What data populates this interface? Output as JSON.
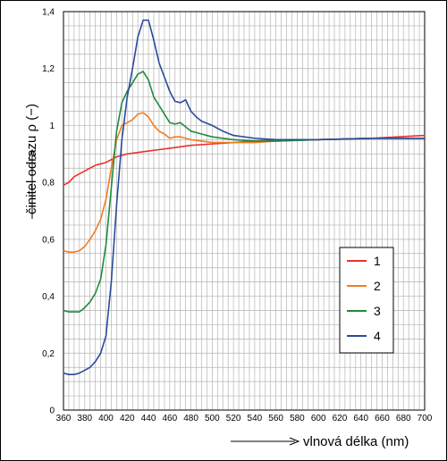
{
  "chart_data": {
    "type": "line",
    "xlabel": "vlnová délka (nm)",
    "ylabel": "činitel odrazu ρ (−)",
    "xlim": [
      360,
      700
    ],
    "ylim": [
      0,
      1.4
    ],
    "x_ticks": [
      360,
      380,
      400,
      420,
      440,
      460,
      480,
      500,
      520,
      540,
      560,
      580,
      600,
      620,
      640,
      660,
      680,
      700
    ],
    "x_tick_labels": [
      "360",
      "380",
      "400",
      "420",
      "440",
      "460",
      "480",
      "500",
      "520",
      "540",
      "560",
      "580",
      "600",
      "620",
      "640",
      "660",
      "680",
      "700"
    ],
    "y_ticks": [
      0,
      0.2,
      0.4,
      0.6,
      0.8,
      1,
      1.2,
      1.4
    ],
    "y_tick_labels": [
      "0",
      "0,2",
      "0,4",
      "0,6",
      "0,8",
      "1",
      "1,2",
      "1,4"
    ],
    "grid": true,
    "legend_position": "right, lower-middle",
    "series": [
      {
        "name": "1",
        "color": "#e8322a",
        "x": [
          360,
          365,
          370,
          375,
          380,
          385,
          390,
          395,
          400,
          405,
          410,
          415,
          420,
          430,
          440,
          450,
          460,
          470,
          480,
          500,
          520,
          540,
          560,
          600,
          650,
          700
        ],
        "y": [
          0.79,
          0.8,
          0.82,
          0.83,
          0.84,
          0.85,
          0.86,
          0.865,
          0.87,
          0.88,
          0.89,
          0.895,
          0.9,
          0.905,
          0.91,
          0.915,
          0.92,
          0.925,
          0.93,
          0.935,
          0.94,
          0.945,
          0.95,
          0.95,
          0.955,
          0.965
        ]
      },
      {
        "name": "2",
        "color": "#f07c22",
        "x": [
          360,
          365,
          370,
          375,
          380,
          385,
          390,
          395,
          400,
          405,
          410,
          415,
          420,
          425,
          430,
          435,
          440,
          445,
          450,
          455,
          460,
          465,
          470,
          475,
          480,
          490,
          500,
          520,
          540,
          560,
          600,
          650,
          700
        ],
        "y": [
          0.56,
          0.555,
          0.555,
          0.56,
          0.575,
          0.6,
          0.63,
          0.67,
          0.74,
          0.85,
          0.95,
          1.0,
          1.01,
          1.02,
          1.04,
          1.045,
          1.03,
          1.0,
          0.98,
          0.97,
          0.955,
          0.96,
          0.96,
          0.955,
          0.95,
          0.945,
          0.94,
          0.94,
          0.94,
          0.945,
          0.95,
          0.955,
          0.955
        ]
      },
      {
        "name": "3",
        "color": "#1f8a3c",
        "x": [
          360,
          365,
          370,
          375,
          380,
          385,
          390,
          395,
          400,
          405,
          410,
          415,
          420,
          425,
          430,
          435,
          440,
          445,
          450,
          455,
          460,
          465,
          470,
          475,
          480,
          490,
          500,
          520,
          540,
          560,
          600,
          650,
          700
        ],
        "y": [
          0.35,
          0.345,
          0.345,
          0.345,
          0.36,
          0.38,
          0.41,
          0.46,
          0.58,
          0.78,
          0.98,
          1.08,
          1.12,
          1.15,
          1.18,
          1.19,
          1.16,
          1.1,
          1.07,
          1.04,
          1.01,
          1.005,
          1.01,
          0.995,
          0.98,
          0.97,
          0.96,
          0.95,
          0.945,
          0.945,
          0.95,
          0.955,
          0.955
        ]
      },
      {
        "name": "4",
        "color": "#2b4a9c",
        "x": [
          360,
          365,
          370,
          375,
          380,
          385,
          390,
          395,
          400,
          405,
          410,
          415,
          420,
          425,
          430,
          435,
          440,
          445,
          450,
          455,
          460,
          465,
          470,
          475,
          480,
          485,
          490,
          500,
          510,
          520,
          540,
          560,
          600,
          650,
          700
        ],
        "y": [
          0.13,
          0.125,
          0.125,
          0.13,
          0.14,
          0.15,
          0.17,
          0.2,
          0.26,
          0.45,
          0.72,
          0.95,
          1.1,
          1.2,
          1.31,
          1.37,
          1.37,
          1.3,
          1.22,
          1.17,
          1.12,
          1.085,
          1.08,
          1.09,
          1.05,
          1.03,
          1.015,
          1.0,
          0.98,
          0.965,
          0.955,
          0.95,
          0.95,
          0.955,
          0.955
        ]
      }
    ]
  }
}
